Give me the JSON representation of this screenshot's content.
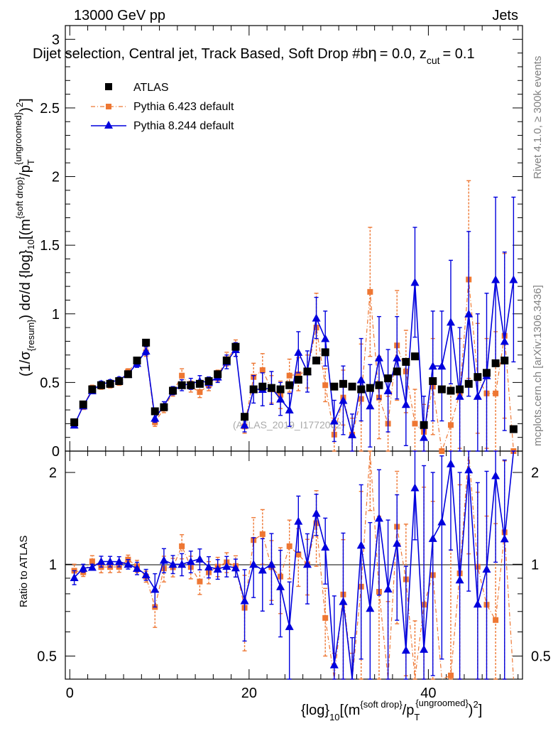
{
  "header": {
    "left": "13000 GeV pp",
    "right": "Jets",
    "title": "Dijet selection, Central jet, Track Based, Soft Drop #b",
    "title_tail": "= 0.0, z",
    "title_sub": "cut",
    "title_end": "= 0.1",
    "eta_symbol": "η"
  },
  "side_labels": {
    "rivet": "Rivet 4.1.0, ≥ 300k events",
    "mcplots": "mcplots.cern.ch [arXiv:1306.3436]"
  },
  "watermark": "(ATLAS_2019_I1772062)",
  "axes": {
    "main_ylabel": {
      "a": "(1/σ",
      "a_sub": "{resum}",
      "b": ") dσ/d {log}",
      "b_sub": "10",
      "c": "[(m",
      "c_sup": "{soft drop}",
      "d": "/p",
      "d_sub": "T",
      "d_sup": "{ungroomed}",
      "e": ")",
      "e_sup": "2",
      "f": "]"
    },
    "ratio_ylabel": "Ratio to ATLAS",
    "xlabel": {
      "a": "{log}",
      "a_sub": "10",
      "b": "[(m",
      "b_sup": "{soft drop}",
      "c": "/p",
      "c_sub": "T",
      "c_sup": "{ungroomed}",
      "d": ")",
      "d_sup": "2",
      "e": "]"
    },
    "x_ticks": [
      "0",
      "20",
      "40"
    ],
    "main_y_ticks": [
      "0",
      "0.5",
      "1",
      "1.5",
      "2",
      "2.5",
      "3"
    ],
    "ratio_y_ticks": [
      "0.5",
      "1",
      "2"
    ]
  },
  "legend": [
    {
      "label": "ATLAS",
      "color": "#000000",
      "marker": "square"
    },
    {
      "label": "Pythia 6.423 default",
      "color": "#ee7733",
      "marker": "square"
    },
    {
      "label": "Pythia 8.244 default",
      "color": "#0000dd",
      "marker": "triangle"
    }
  ],
  "chart_data": {
    "type": "line",
    "title": "Dijet selection, Central jet, Track Based, Soft Drop #b = 0.0, z_cut = 0.1",
    "xlabel": "{log}_10[(m^{soft drop}/p_T^{ungroomed})^2]",
    "ylabel": "(1/σ_{resum}) dσ/d {log}_10[(m^{soft drop}/p_T^{ungroomed})^2]",
    "xlim": [
      -0.5,
      50.5
    ],
    "ylim": [
      0,
      3.1
    ],
    "ratio_ylim": [
      0.42,
      2.35
    ],
    "x": [
      0.5,
      1.5,
      2.5,
      3.5,
      4.5,
      5.5,
      6.5,
      7.5,
      8.5,
      9.5,
      10.5,
      11.5,
      12.5,
      13.5,
      14.5,
      15.5,
      16.5,
      17.5,
      18.5,
      19.5,
      20.5,
      21.5,
      22.5,
      23.5,
      24.5,
      25.5,
      26.5,
      27.5,
      28.5,
      29.5,
      30.5,
      31.5,
      32.5,
      33.5,
      34.5,
      35.5,
      36.5,
      37.5,
      38.5,
      39.5,
      40.5,
      41.5,
      42.5,
      43.5,
      44.5,
      45.5,
      46.5,
      47.5,
      48.5,
      49.5
    ],
    "series": [
      {
        "name": "ATLAS",
        "color": "#000000",
        "values": [
          0.21,
          0.34,
          0.45,
          0.48,
          0.49,
          0.51,
          0.56,
          0.66,
          0.79,
          0.29,
          0.32,
          0.44,
          0.48,
          0.48,
          0.49,
          0.51,
          0.56,
          0.66,
          0.76,
          0.25,
          0.45,
          0.47,
          0.46,
          0.45,
          0.48,
          0.52,
          0.58,
          0.66,
          0.72,
          0.47,
          0.49,
          0.47,
          0.45,
          0.46,
          0.48,
          0.53,
          0.58,
          0.65,
          0.69,
          0.19,
          0.51,
          0.45,
          0.44,
          0.45,
          0.49,
          0.54,
          0.57,
          0.64,
          0.66,
          0.16
        ],
        "errors": [
          0.01,
          0.01,
          0.01,
          0.01,
          0.01,
          0.01,
          0.01,
          0.01,
          0.01,
          0.01,
          0.01,
          0.01,
          0.01,
          0.01,
          0.01,
          0.01,
          0.01,
          0.01,
          0.01,
          0.01,
          0.01,
          0.01,
          0.01,
          0.01,
          0.01,
          0.01,
          0.01,
          0.01,
          0.01,
          0.01,
          0.01,
          0.01,
          0.01,
          0.01,
          0.01,
          0.01,
          0.01,
          0.01,
          0.01,
          0.01,
          0.01,
          0.01,
          0.01,
          0.01,
          0.01,
          0.01,
          0.01,
          0.01,
          0.01,
          0.01
        ]
      },
      {
        "name": "Pythia 6.423 default",
        "color": "#ee7733",
        "values": [
          0.2,
          0.32,
          0.46,
          0.47,
          0.48,
          0.5,
          0.58,
          0.65,
          0.72,
          0.21,
          0.31,
          0.43,
          0.55,
          0.47,
          0.43,
          0.48,
          0.55,
          0.67,
          0.75,
          0.18,
          0.54,
          0.59,
          0.45,
          0.41,
          0.55,
          0.56,
          0.58,
          0.9,
          0.48,
          0.12,
          0.39,
          0.12,
          0.38,
          1.16,
          0.39,
          0.2,
          0.77,
          0.58,
          0.2,
          0.14,
          0.47,
          0.0,
          0.19,
          0.42,
          1.25,
          0.53,
          0.42,
          0.42,
          0.84,
          0.0
        ],
        "errors": [
          0.01,
          0.01,
          0.02,
          0.02,
          0.02,
          0.02,
          0.02,
          0.03,
          0.03,
          0.03,
          0.03,
          0.03,
          0.05,
          0.04,
          0.04,
          0.04,
          0.04,
          0.05,
          0.06,
          0.05,
          0.1,
          0.12,
          0.1,
          0.1,
          0.12,
          0.12,
          0.12,
          0.25,
          0.12,
          0.12,
          0.2,
          0.12,
          0.4,
          0.47,
          0.3,
          0.2,
          0.4,
          0.3,
          0.25,
          0.2,
          0.35,
          0.0,
          0.3,
          0.4,
          0.72,
          0.4,
          0.4,
          0.45,
          0.6,
          0.0
        ]
      },
      {
        "name": "Pythia 8.244 default",
        "color": "#0000dd",
        "values": [
          0.19,
          0.33,
          0.44,
          0.49,
          0.5,
          0.52,
          0.56,
          0.64,
          0.73,
          0.24,
          0.33,
          0.44,
          0.48,
          0.49,
          0.51,
          0.5,
          0.54,
          0.65,
          0.74,
          0.19,
          0.45,
          0.45,
          0.46,
          0.38,
          0.3,
          0.72,
          0.58,
          0.97,
          0.82,
          0.22,
          0.37,
          0.12,
          0.52,
          0.33,
          0.68,
          0.44,
          0.68,
          0.34,
          1.23,
          0.1,
          0.62,
          0.62,
          0.94,
          0.4,
          1.0,
          0.4,
          0.55,
          1.25,
          0.8,
          1.25
        ],
        "errors": [
          0.01,
          0.01,
          0.01,
          0.02,
          0.02,
          0.02,
          0.02,
          0.03,
          0.03,
          0.03,
          0.03,
          0.03,
          0.04,
          0.04,
          0.04,
          0.04,
          0.04,
          0.05,
          0.05,
          0.05,
          0.1,
          0.12,
          0.12,
          0.12,
          0.12,
          0.15,
          0.15,
          0.15,
          0.2,
          0.15,
          0.25,
          0.15,
          0.3,
          0.3,
          0.3,
          0.3,
          0.3,
          0.3,
          0.4,
          0.3,
          0.4,
          0.4,
          0.45,
          0.5,
          0.6,
          0.6,
          0.6,
          0.6,
          0.65,
          0.6
        ]
      }
    ]
  }
}
